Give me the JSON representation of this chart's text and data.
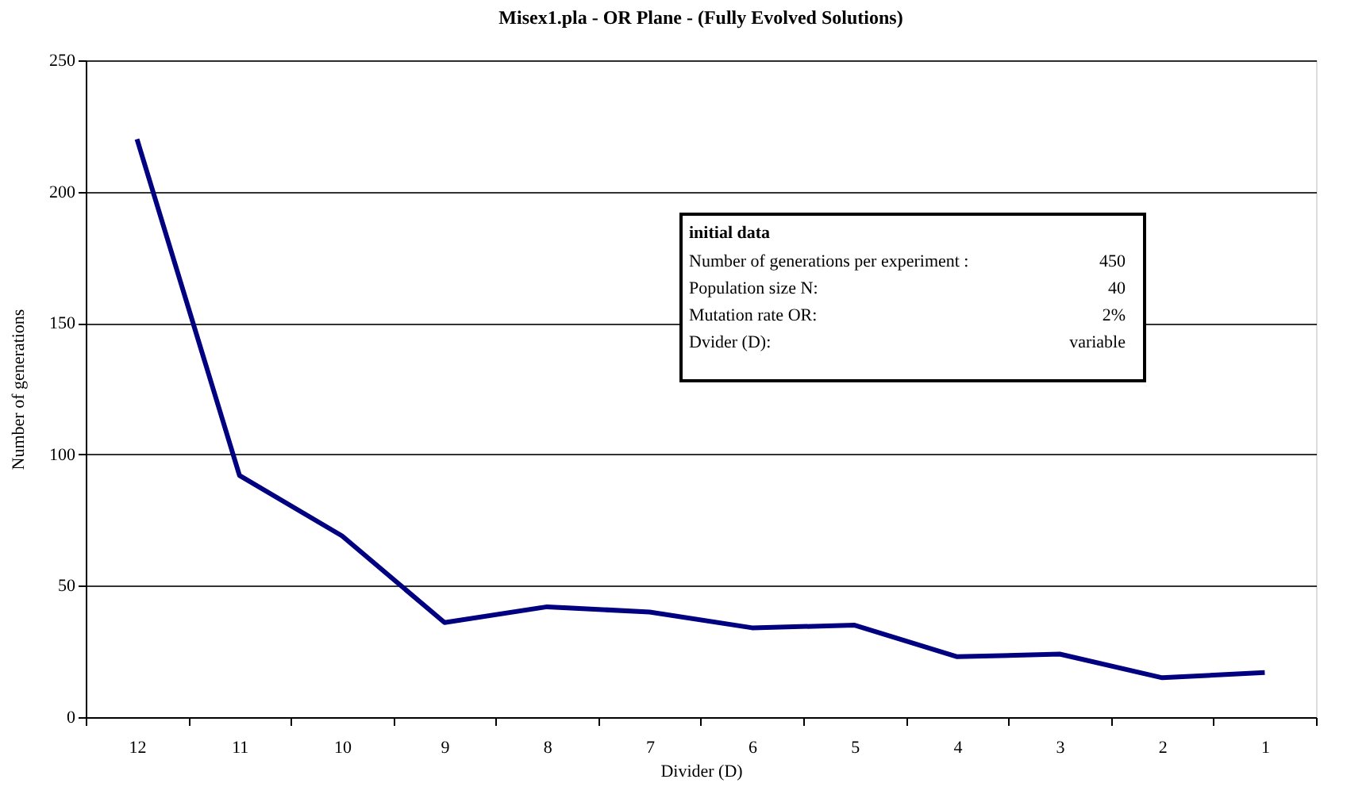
{
  "chart_data": {
    "type": "line",
    "title": "Misex1.pla - OR Plane - (Fully Evolved Solutions)",
    "xlabel": "Divider (D)",
    "ylabel": "Number of generations",
    "categories": [
      "12",
      "11",
      "10",
      "9",
      "8",
      "7",
      "6",
      "5",
      "4",
      "3",
      "2",
      "1"
    ],
    "series": [
      {
        "color": "#000080",
        "values": [
          220,
          92,
          69,
          36,
          42,
          40,
          34,
          35,
          23,
          24,
          15,
          17
        ]
      }
    ],
    "ylim": [
      0,
      250
    ],
    "yticks": [
      0,
      50,
      100,
      150,
      200,
      250
    ],
    "grid": "y",
    "marker": "none",
    "line_style": "solid",
    "annotations": [
      "initial data",
      "Number of generations per experiment :",
      "450",
      "Population size N:",
      "40",
      "Mutation rate OR:",
      "2%",
      "Dvider (D):",
      "variable"
    ]
  }
}
